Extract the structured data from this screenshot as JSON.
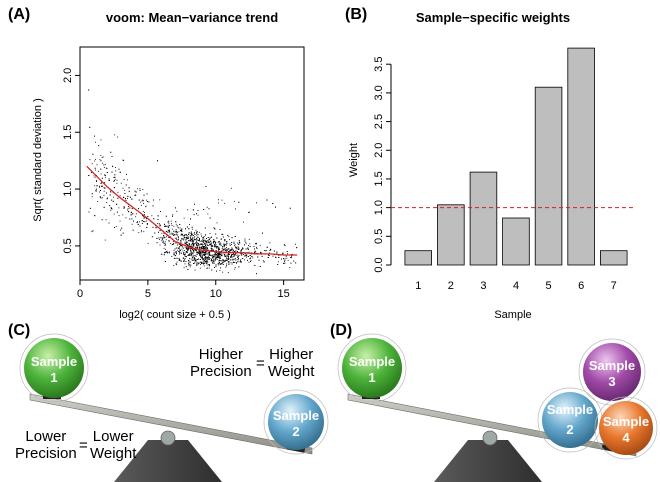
{
  "panels": {
    "a": "(A)",
    "b": "(B)",
    "c": "(C)",
    "d": "(D)"
  },
  "chart_data": [
    {
      "type": "scatter",
      "title": "voom: Mean−variance trend",
      "xlabel": "log2( count size + 0.5 )",
      "ylabel": "Sqrt( standard deviation )",
      "xlim": [
        0,
        16.5
      ],
      "ylim": [
        0.2,
        2.25
      ],
      "xticks": [
        "0",
        "5",
        "10",
        "15"
      ],
      "yticks": [
        "0.5",
        "1.0",
        "1.5",
        "2.0"
      ],
      "point_color": "#000000",
      "trend": {
        "color": "#d62728",
        "x": [
          0.5,
          2,
          3,
          4,
          5,
          6,
          7,
          8,
          9,
          10,
          11,
          12,
          13,
          14,
          15,
          16
        ],
        "y": [
          1.2,
          1.02,
          0.92,
          0.83,
          0.74,
          0.64,
          0.54,
          0.49,
          0.46,
          0.45,
          0.44,
          0.44,
          0.43,
          0.43,
          0.42,
          0.42
        ]
      }
    },
    {
      "type": "bar",
      "title": "Sample−specific weights",
      "xlabel": "Sample",
      "ylabel": "Weight",
      "categories": [
        "1",
        "2",
        "3",
        "4",
        "5",
        "6",
        "7"
      ],
      "values": [
        0.25,
        1.05,
        1.62,
        0.82,
        3.1,
        3.78,
        0.25
      ],
      "ylim": [
        0,
        3.8
      ],
      "yticks": [
        "0.0",
        "0.5",
        "1.0",
        "1.5",
        "2.0",
        "2.5",
        "3.0",
        "3.5"
      ],
      "reference_line": 1.0,
      "bar_color": "#bebebe",
      "line_color": "#e41a1c"
    }
  ],
  "seesaw_c": {
    "higher_left": "Higher\nPrecision",
    "eq1": "=",
    "higher_right": "Higher\nWeight",
    "lower_left": "Lower\nPrecision",
    "eq2": "=",
    "lower_right": "Lower\nWeight",
    "sample1": [
      "Sample",
      "1"
    ],
    "sample2": [
      "Sample",
      "2"
    ]
  },
  "seesaw_d": {
    "sample1": [
      "Sample",
      "1"
    ],
    "sample2": [
      "Sample",
      "2"
    ],
    "sample3": [
      "Sample",
      "3"
    ],
    "sample4": [
      "Sample",
      "4"
    ]
  },
  "colors": {
    "green": "#4cb33a",
    "blue": "#62a6cc",
    "purple": "#a04aa8",
    "orange": "#e8762c",
    "plank": "#a8a8a0",
    "base": "#4a4a4a"
  }
}
